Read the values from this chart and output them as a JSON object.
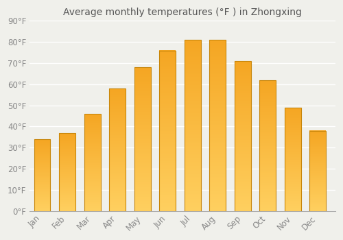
{
  "title": "Average monthly temperatures (°F ) in Zhongxing",
  "months": [
    "Jan",
    "Feb",
    "Mar",
    "Apr",
    "May",
    "Jun",
    "Jul",
    "Aug",
    "Sep",
    "Oct",
    "Nov",
    "Dec"
  ],
  "values": [
    34,
    37,
    46,
    58,
    68,
    76,
    81,
    81,
    71,
    62,
    49,
    38
  ],
  "bar_color_top": "#F5A623",
  "bar_color_bottom": "#FFD060",
  "bar_edge_color": "#C8860A",
  "background_color": "#F0F0EB",
  "plot_bg_color": "#F0F0EB",
  "grid_color": "#FFFFFF",
  "text_color": "#888888",
  "title_color": "#555555",
  "ylim": [
    0,
    90
  ],
  "yticks": [
    0,
    10,
    20,
    30,
    40,
    50,
    60,
    70,
    80,
    90
  ],
  "title_fontsize": 10,
  "tick_fontsize": 8.5,
  "bar_width": 0.65
}
